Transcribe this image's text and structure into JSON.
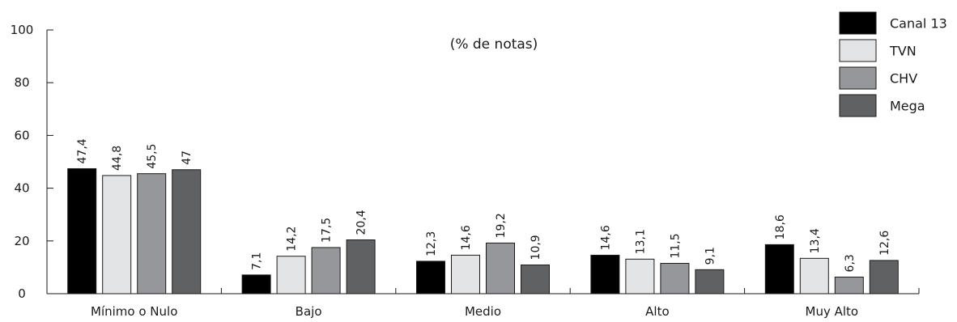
{
  "chart_data": {
    "type": "bar",
    "subtitle": "(% de notas)",
    "categories": [
      "Mínimo o Nulo",
      "Bajo",
      "Medio",
      "Alto",
      "Muy Alto"
    ],
    "series": [
      {
        "name": "Canal 13",
        "color": "#000000",
        "values": [
          47.4,
          7.1,
          12.3,
          14.6,
          18.6
        ],
        "labels": [
          "47,4",
          "7,1",
          "12,3",
          "14,6",
          "18,6"
        ]
      },
      {
        "name": "TVN",
        "color": "#e3e4e6",
        "values": [
          44.8,
          14.2,
          14.6,
          13.1,
          13.4
        ],
        "labels": [
          "44,8",
          "14,2",
          "14,6",
          "13,1",
          "13,4"
        ]
      },
      {
        "name": "CHV",
        "color": "#96979a",
        "values": [
          45.5,
          17.5,
          19.2,
          11.5,
          6.3
        ],
        "labels": [
          "45,5",
          "17,5",
          "19,2",
          "11,5",
          "6,3"
        ]
      },
      {
        "name": "Mega",
        "color": "#606163",
        "values": [
          47,
          20.4,
          10.9,
          9.1,
          12.6
        ],
        "labels": [
          "47",
          "20,4",
          "10,9",
          "9,1",
          "12,6"
        ]
      }
    ],
    "ylim": [
      0,
      100
    ],
    "yticks": [
      0,
      20,
      40,
      60,
      80,
      100
    ],
    "ytick_labels": [
      "0",
      "20",
      "40",
      "60",
      "80",
      "100"
    ],
    "legend_position": "top-right",
    "grid": false
  }
}
